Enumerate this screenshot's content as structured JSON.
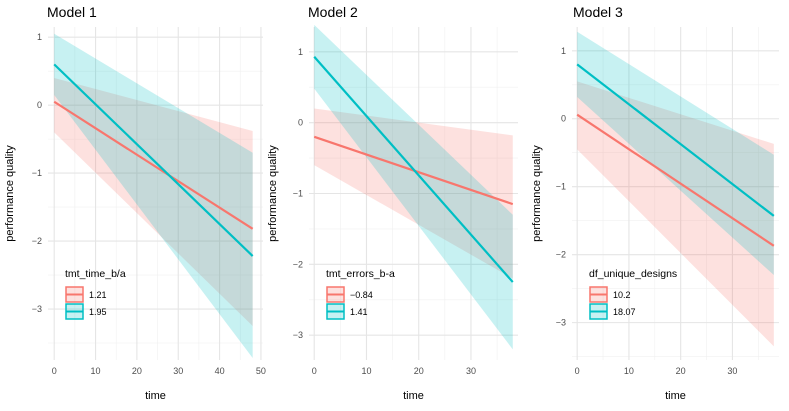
{
  "chart_data": [
    {
      "type": "line",
      "title": "Model 1",
      "xlabel": "time",
      "ylabel": "performance quality",
      "xlim": [
        -1.5,
        50.5
      ],
      "ylim": [
        -3.75,
        1.15
      ],
      "xticks": [
        0,
        10,
        20,
        30,
        40,
        50
      ],
      "yticks": [
        1,
        0,
        -1,
        -2,
        -3
      ],
      "ytick_labels": [
        "1",
        "0",
        "−1",
        "−2",
        "−3"
      ],
      "grid": true,
      "legend": {
        "title": "tmt_time_b/a",
        "position": "bottom-left"
      },
      "series": [
        {
          "name": "1.21",
          "color": "#F8766D",
          "x": [
            0,
            48
          ],
          "y": [
            0.05,
            -1.82
          ],
          "ci_lower": [
            -0.4,
            -3.25
          ],
          "ci_upper": [
            0.4,
            -0.38
          ]
        },
        {
          "name": "1.95",
          "color": "#00BFC4",
          "x": [
            0,
            48
          ],
          "y": [
            0.6,
            -2.22
          ],
          "ci_lower": [
            0.15,
            -3.72
          ],
          "ci_upper": [
            1.05,
            -0.7
          ]
        }
      ]
    },
    {
      "type": "line",
      "title": "Model 2",
      "xlabel": "time",
      "ylabel": "performance quality",
      "xlim": [
        -1.0,
        39.0
      ],
      "ylim": [
        -3.35,
        1.35
      ],
      "xticks": [
        0,
        10,
        20,
        30
      ],
      "yticks": [
        1,
        0,
        -1,
        -2,
        -3
      ],
      "ytick_labels": [
        "1",
        "0",
        "−1",
        "−2",
        "−3"
      ],
      "grid": true,
      "legend": {
        "title": "tmt_errors_b-a",
        "position": "bottom-left"
      },
      "series": [
        {
          "name": "−0.84",
          "color": "#F8766D",
          "x": [
            0,
            38
          ],
          "y": [
            -0.2,
            -1.15
          ],
          "ci_lower": [
            -0.6,
            -2.2
          ],
          "ci_upper": [
            0.2,
            -0.18
          ]
        },
        {
          "name": "1.41",
          "color": "#00BFC4",
          "x": [
            0,
            38
          ],
          "y": [
            0.93,
            -2.25
          ],
          "ci_lower": [
            0.48,
            -3.2
          ],
          "ci_upper": [
            1.38,
            -1.3
          ]
        }
      ]
    },
    {
      "type": "line",
      "title": "Model 3",
      "xlabel": "time",
      "ylabel": "performance quality",
      "xlim": [
        -1.0,
        39.0
      ],
      "ylim": [
        -3.55,
        1.35
      ],
      "xticks": [
        0,
        10,
        20,
        30
      ],
      "yticks": [
        1,
        0,
        -1,
        -2,
        -3
      ],
      "ytick_labels": [
        "1",
        "0",
        "−1",
        "−2",
        "−3"
      ],
      "grid": true,
      "legend": {
        "title": "df_unique_designs",
        "position": "bottom-left"
      },
      "series": [
        {
          "name": "10.2",
          "color": "#F8766D",
          "x": [
            0,
            38
          ],
          "y": [
            0.06,
            -1.87
          ],
          "ci_lower": [
            -0.45,
            -3.35
          ],
          "ci_upper": [
            0.55,
            -0.37
          ]
        },
        {
          "name": "18.07",
          "color": "#00BFC4",
          "x": [
            0,
            38
          ],
          "y": [
            0.8,
            -1.43
          ],
          "ci_lower": [
            0.32,
            -2.3
          ],
          "ci_upper": [
            1.28,
            -0.53
          ]
        }
      ]
    }
  ]
}
